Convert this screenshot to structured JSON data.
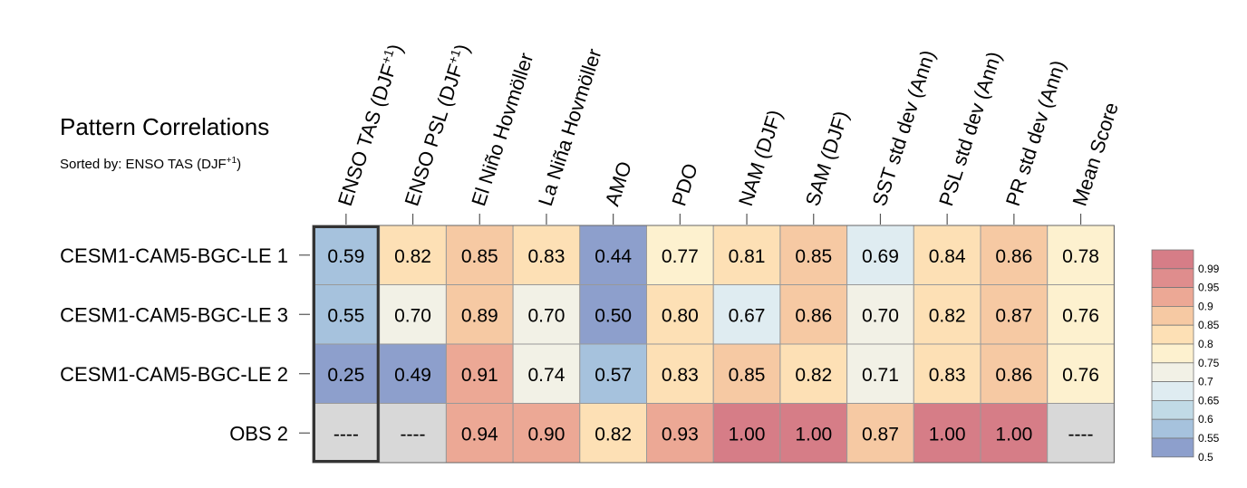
{
  "title": "Pattern Correlations",
  "subtitle": {
    "prefix": "Sorted by: ENSO TAS (DJF",
    "superscript": "+1",
    "suffix": ")"
  },
  "chart_data": {
    "type": "heatmap",
    "title": "Pattern Correlations",
    "columns": [
      {
        "label": "ENSO TAS (DJF",
        "sup": "+1",
        "suffix": ")"
      },
      {
        "label": "ENSO PSL (DJF",
        "sup": "+1",
        "suffix": ")"
      },
      {
        "label": "El Niño Hovmöller"
      },
      {
        "label": "La Niña Hovmöller"
      },
      {
        "label": "AMO"
      },
      {
        "label": "PDO"
      },
      {
        "label": "NAM (DJF)"
      },
      {
        "label": "SAM (DJF)"
      },
      {
        "label": "SST std dev (Ann)"
      },
      {
        "label": "PSL std dev (Ann)"
      },
      {
        "label": "PR std dev (Ann)"
      },
      {
        "label": "Mean Score"
      }
    ],
    "rows": [
      "CESM1-CAM5-BGC-LE 1",
      "CESM1-CAM5-BGC-LE 3",
      "CESM1-CAM5-BGC-LE 2",
      "OBS 2"
    ],
    "values": [
      [
        "0.59",
        "0.82",
        "0.85",
        "0.83",
        "0.44",
        "0.77",
        "0.81",
        "0.85",
        "0.69",
        "0.84",
        "0.86",
        "0.78"
      ],
      [
        "0.55",
        "0.70",
        "0.89",
        "0.70",
        "0.50",
        "0.80",
        "0.67",
        "0.86",
        "0.70",
        "0.82",
        "0.87",
        "0.76"
      ],
      [
        "0.25",
        "0.49",
        "0.91",
        "0.74",
        "0.57",
        "0.83",
        "0.85",
        "0.82",
        "0.71",
        "0.83",
        "0.86",
        "0.76"
      ],
      [
        "----",
        "----",
        "0.94",
        "0.90",
        "0.82",
        "0.93",
        "1.00",
        "1.00",
        "0.87",
        "1.00",
        "1.00",
        "----"
      ]
    ],
    "highlighted_column": 0,
    "missing_value_color": "#d8d8d8",
    "colorbar": {
      "labels": [
        "0.99",
        "0.95",
        "0.9",
        "0.85",
        "0.8",
        "0.75",
        "0.7",
        "0.65",
        "0.6",
        "0.55",
        "0.5"
      ],
      "colors": [
        "#d67d87",
        "#df8d8d",
        "#eca895",
        "#f6c9a3",
        "#fde0b5",
        "#fdf1cf",
        "#f2f1e6",
        "#dfecf1",
        "#c1dae6",
        "#a6c2dd",
        "#8d9fcc"
      ]
    }
  }
}
